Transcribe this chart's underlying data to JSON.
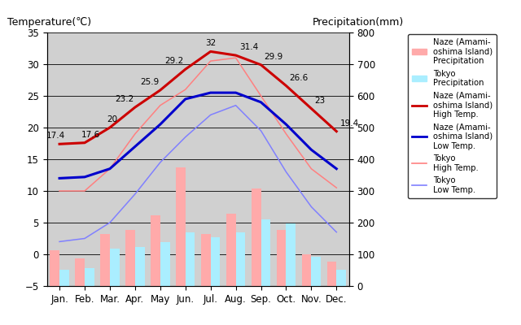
{
  "months": [
    "Jan.",
    "Feb.",
    "Mar.",
    "Apr.",
    "May",
    "Jun.",
    "Jul.",
    "Aug.",
    "Sep.",
    "Oct.",
    "Nov.",
    "Dec."
  ],
  "naze_high": [
    17.4,
    17.6,
    20.0,
    23.2,
    25.9,
    29.2,
    32.0,
    31.4,
    29.9,
    26.6,
    23.0,
    19.4
  ],
  "naze_low": [
    12.0,
    12.2,
    13.5,
    17.0,
    20.5,
    24.5,
    25.5,
    25.5,
    24.0,
    20.5,
    16.5,
    13.5
  ],
  "tokyo_high": [
    10.0,
    10.0,
    13.5,
    19.0,
    23.5,
    26.0,
    30.5,
    31.0,
    25.0,
    19.0,
    13.5,
    10.5
  ],
  "tokyo_low": [
    2.0,
    2.5,
    5.0,
    9.5,
    14.5,
    18.5,
    22.0,
    23.5,
    19.5,
    13.0,
    7.5,
    3.5
  ],
  "naze_precip_mm": [
    112,
    87,
    163,
    176,
    222,
    375,
    165,
    228,
    308,
    176,
    100,
    76
  ],
  "tokyo_precip_mm": [
    52,
    56,
    117,
    124,
    138,
    168,
    153,
    168,
    209,
    197,
    92,
    51
  ],
  "naze_precip_color": "#ffaaaa",
  "tokyo_precip_color": "#aaeeff",
  "naze_high_color": "#cc0000",
  "naze_low_color": "#0000cc",
  "tokyo_high_color": "#ff8080",
  "tokyo_low_color": "#8080ff",
  "bg_color": "#d0d0d0",
  "ylabel_left": "Temperature(℃)",
  "ylabel_right": "Precipitation(mm)",
  "ylim_left": [
    -5,
    35
  ],
  "ylim_right": [
    0,
    800
  ],
  "xlim": [
    -0.5,
    11.5
  ],
  "grid_color": "black",
  "naze_high_labels": [
    "17.4",
    "17.6",
    "20",
    "23.2",
    "25.9",
    "29.2",
    "32",
    "31.4",
    "29.9",
    "26.6",
    "23",
    "19.4"
  ],
  "legend_labels": [
    "Naze (Amami-\noshima Island)\nPrecipitation",
    "Tokyo\nPrecipitation",
    "Naze (Amami-\noshima Island)\nHigh Temp.",
    "Naze (Amami-\noshima Island)\nLow Temp.",
    "Tokyo\nHigh Temp.",
    "Tokyo\nLow Temp."
  ]
}
